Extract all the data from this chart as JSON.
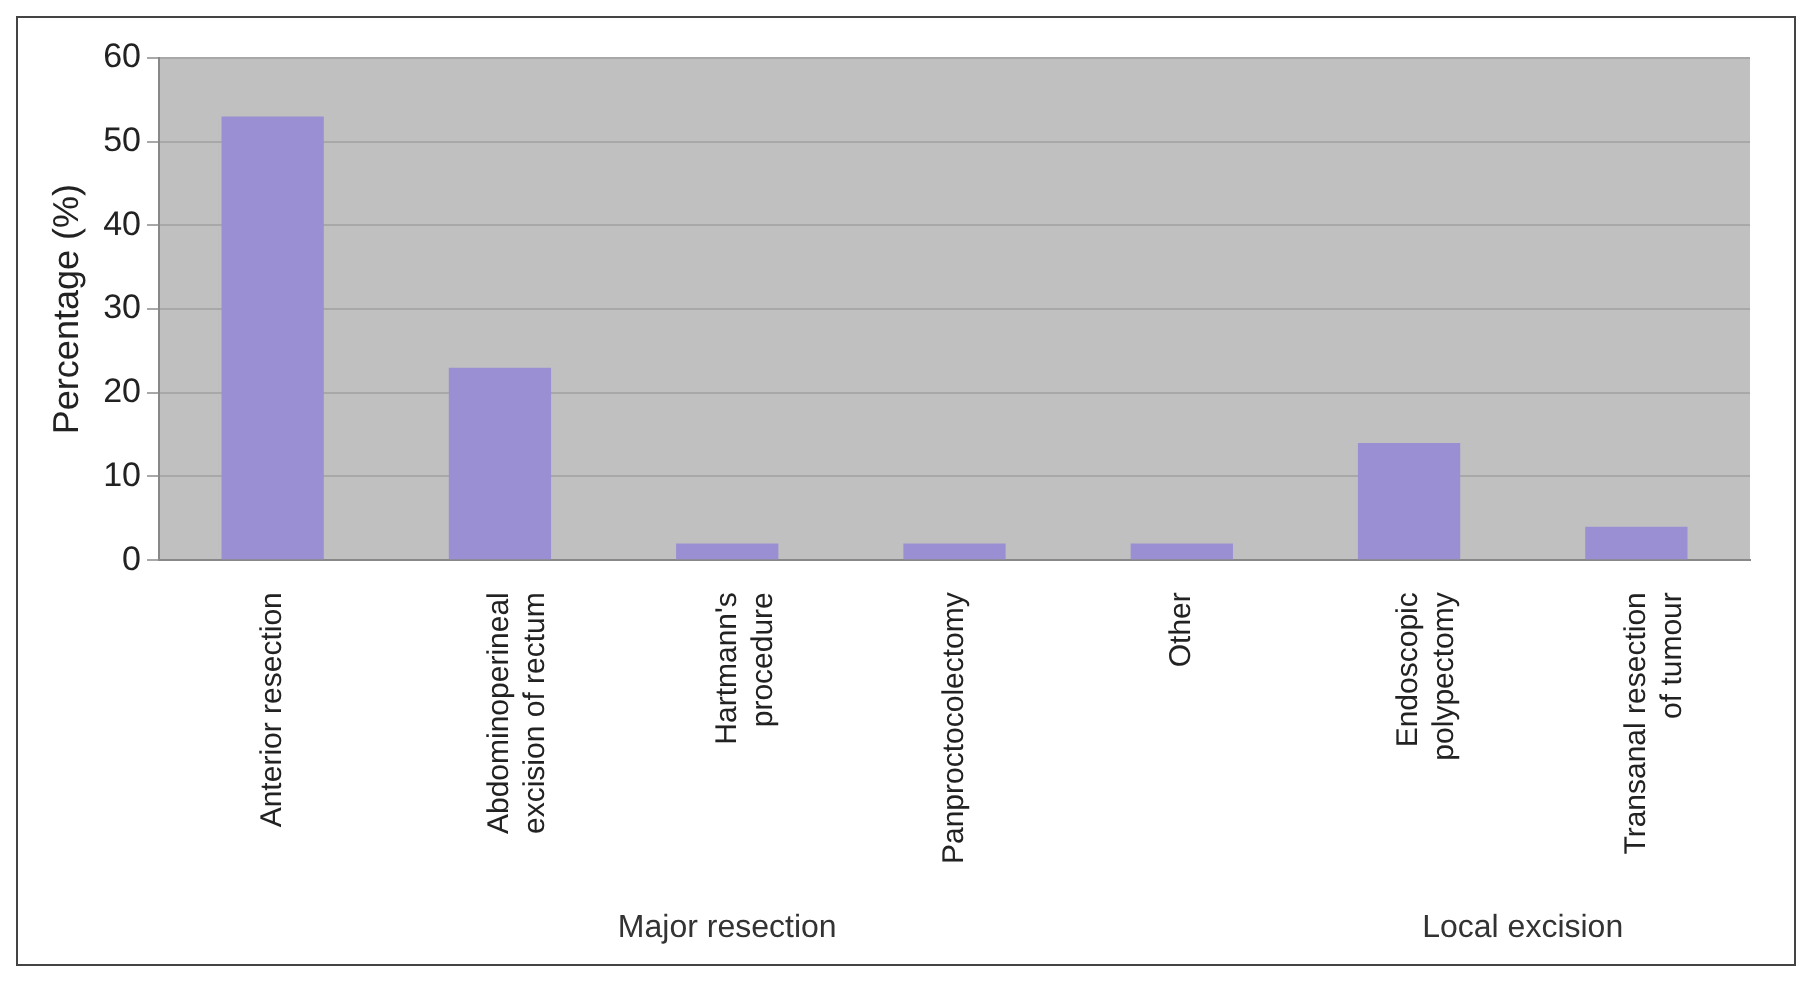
{
  "chart_data": {
    "type": "bar",
    "ylabel": "Percentage (%)",
    "categories": [
      "Anterior resection",
      "Abdominoperineal excision of rectum",
      "Hartmann's procedure",
      "Panproctocolectomy",
      "Other",
      "Endoscopic polypectomy",
      "Transanal resection of tumour"
    ],
    "values": [
      53,
      23,
      2,
      2,
      2,
      14,
      4
    ],
    "color": "#9a8fd2",
    "ylim": [
      0,
      60
    ],
    "yticks": [
      0,
      10,
      20,
      30,
      40,
      50,
      60
    ],
    "grid": "y",
    "annotations": [
      "Major resection",
      "Local excision"
    ]
  }
}
